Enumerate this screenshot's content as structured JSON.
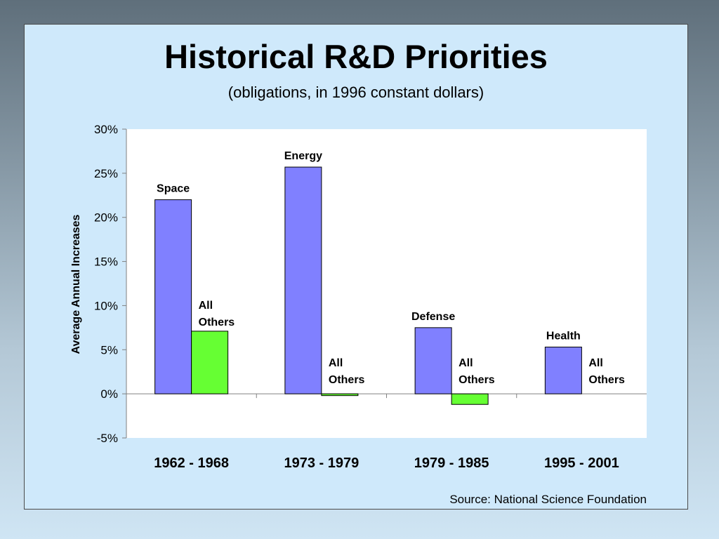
{
  "title": "Historical R&D Priorities",
  "subtitle": "(obligations, in 1996 constant dollars)",
  "source": "Source: National Science Foundation",
  "colors": {
    "primary": "#8080ff",
    "others": "#66ff33",
    "plot_bg": "#ffffff",
    "slide_bg": "#cfe9fb"
  },
  "chart_data": {
    "type": "bar",
    "categories": [
      "1962 - 1968",
      "1973 - 1979",
      "1979 - 1985",
      "1995 - 2001"
    ],
    "series": [
      {
        "labels": [
          "Space",
          "Energy",
          "Defense",
          "Health"
        ],
        "values": [
          22.0,
          25.7,
          7.5,
          5.3
        ],
        "color": "#8080ff"
      },
      {
        "labels": [
          "All\nOthers",
          "All\nOthers",
          "All\nOthers",
          "All\nOthers"
        ],
        "values": [
          7.1,
          -0.2,
          -1.2,
          0.0
        ],
        "color": "#66ff33"
      }
    ],
    "ylabel": "Average Annual Increases",
    "ylim": [
      -5,
      30
    ],
    "yticks": [
      -5,
      0,
      5,
      10,
      15,
      20,
      25,
      30
    ],
    "ytick_format": "percent"
  }
}
